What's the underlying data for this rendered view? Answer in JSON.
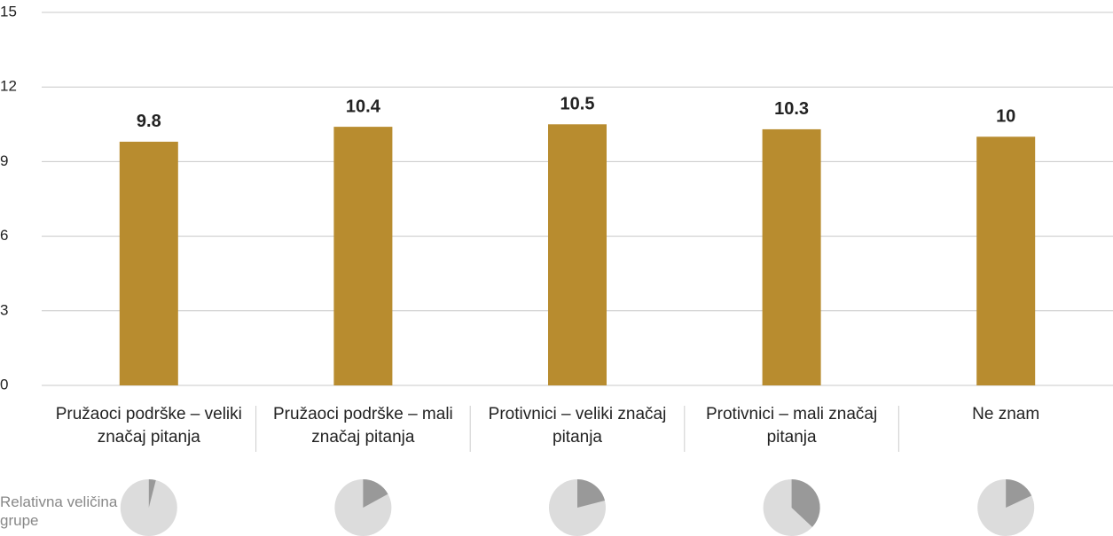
{
  "chart_data": {
    "type": "bar",
    "categories": [
      "Pružaoci podrške – veliki značaj pitanja",
      "Pružaoci podrške – mali značaj pitanja",
      "Protivnici – veliki značaj pitanja",
      "Protivnici – mali značaj pitanja",
      "Ne znam"
    ],
    "values": [
      9.8,
      10.4,
      10.5,
      10.3,
      10
    ],
    "color": "#b88c2f",
    "ylim": [
      0,
      15
    ],
    "yticks": [
      0,
      3,
      6,
      9,
      12,
      15
    ],
    "grid": true,
    "group_size": {
      "label": "Relativna veličina grupe",
      "values": [
        4,
        17,
        21,
        37,
        18
      ],
      "color": "#999999",
      "rest_color": "#dcdcdc"
    }
  }
}
